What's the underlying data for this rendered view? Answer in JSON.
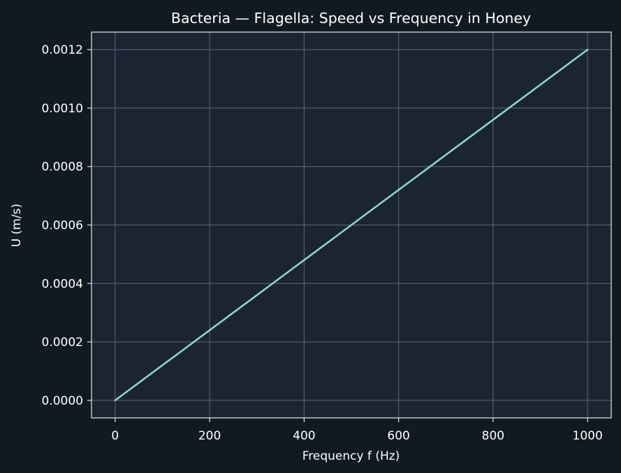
{
  "chart_data": {
    "type": "line",
    "title": "Bacteria — Flagella: Speed vs Frequency in Honey",
    "xlabel": "Frequency f (Hz)",
    "ylabel": "U (m/s)",
    "xlim": [
      -50,
      1050
    ],
    "ylim": [
      -6e-05,
      0.00126
    ],
    "x_ticks": [
      0,
      200,
      400,
      600,
      800,
      1000
    ],
    "x_tick_labels": [
      "0",
      "200",
      "400",
      "600",
      "800",
      "1000"
    ],
    "y_ticks": [
      0,
      0.0002,
      0.0004,
      0.0006,
      0.0008,
      0.001,
      0.0012
    ],
    "y_tick_labels": [
      "0.0000",
      "0.0002",
      "0.0004",
      "0.0006",
      "0.0008",
      "0.0010",
      "0.0012"
    ],
    "grid": true,
    "series": [
      {
        "x": [
          0,
          100,
          200,
          300,
          400,
          500,
          600,
          700,
          800,
          900,
          1000
        ],
        "y": [
          0,
          0.00012,
          0.00024,
          0.00036,
          0.00048,
          0.0006,
          0.00072,
          0.00084,
          0.00096,
          0.00108,
          0.0012
        ],
        "color": "#8fd3c7"
      }
    ],
    "colors": {
      "page_background": "#111a22",
      "plot_background": "#1b2433",
      "grid": "#5e6877",
      "axes": "#e8e8e8",
      "text": "#ffffff"
    }
  }
}
